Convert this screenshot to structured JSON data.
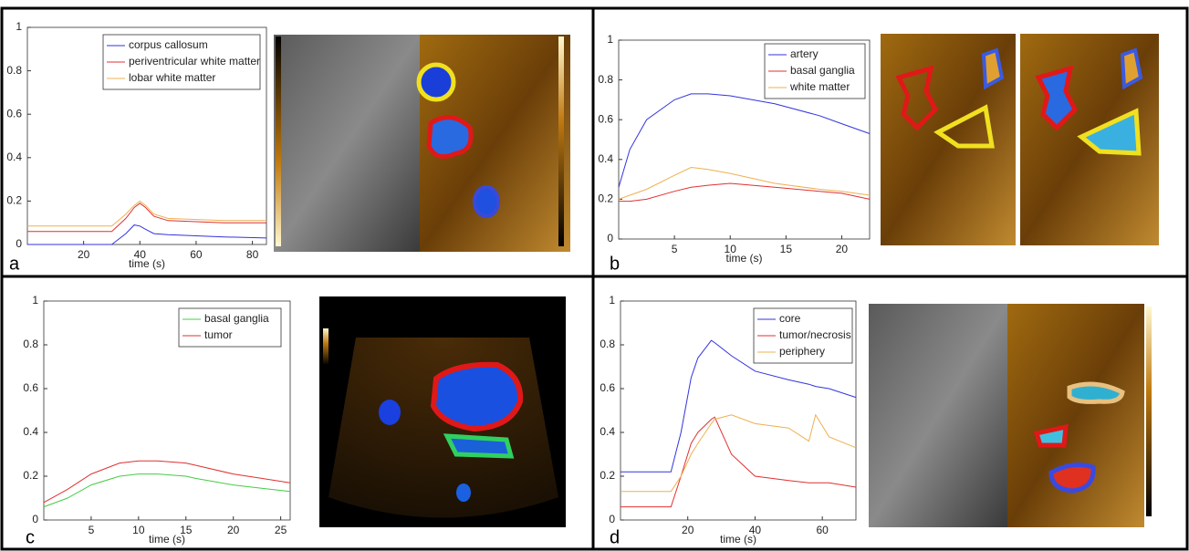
{
  "chart_data": [
    {
      "type": "line",
      "panel_label": "a",
      "xlabel": "time (s)",
      "xlim": [
        0,
        85
      ],
      "xticks": [
        20,
        40,
        60,
        80
      ],
      "ylim": [
        0,
        1
      ],
      "yticks": [
        0,
        0.2,
        0.4,
        0.6,
        0.8,
        1
      ],
      "x": [
        0,
        10,
        20,
        30,
        35,
        38,
        40,
        42,
        45,
        50,
        60,
        70,
        85
      ],
      "series": [
        {
          "name": "corpus callosum",
          "color": "#3333dd",
          "values": [
            0,
            0,
            0,
            0,
            0.05,
            0.09,
            0.085,
            0.07,
            0.05,
            0.045,
            0.04,
            0.035,
            0.03
          ]
        },
        {
          "name": "periventricular white matter",
          "color": "#e03030",
          "values": [
            0.06,
            0.06,
            0.06,
            0.06,
            0.12,
            0.17,
            0.19,
            0.17,
            0.13,
            0.11,
            0.105,
            0.1,
            0.1
          ]
        },
        {
          "name": "lobar white matter",
          "color": "#eeb050",
          "values": [
            0.085,
            0.085,
            0.085,
            0.085,
            0.14,
            0.18,
            0.2,
            0.18,
            0.14,
            0.12,
            0.115,
            0.11,
            0.11
          ]
        }
      ]
    },
    {
      "type": "line",
      "panel_label": "b",
      "xlabel": "time (s)",
      "xlim": [
        0,
        22.5
      ],
      "xticks": [
        5,
        10,
        15,
        20
      ],
      "ylim": [
        0,
        1
      ],
      "yticks": [
        0,
        0.2,
        0.4,
        0.6,
        0.8,
        1
      ],
      "x": [
        0,
        1,
        2.5,
        5,
        6.5,
        8,
        10,
        14,
        18,
        20,
        22.5
      ],
      "series": [
        {
          "name": "artery",
          "color": "#3333dd",
          "values": [
            0.26,
            0.45,
            0.6,
            0.7,
            0.73,
            0.73,
            0.72,
            0.68,
            0.62,
            0.58,
            0.53
          ]
        },
        {
          "name": "basal ganglia",
          "color": "#e03030",
          "values": [
            0.19,
            0.19,
            0.2,
            0.24,
            0.26,
            0.27,
            0.28,
            0.26,
            0.24,
            0.23,
            0.2
          ]
        },
        {
          "name": "white matter",
          "color": "#eeb050",
          "values": [
            0.2,
            0.22,
            0.25,
            0.32,
            0.36,
            0.35,
            0.33,
            0.28,
            0.25,
            0.24,
            0.22
          ]
        }
      ]
    },
    {
      "type": "line",
      "panel_label": "c",
      "xlabel": "time (s)",
      "xlim": [
        0,
        26
      ],
      "xticks": [
        5,
        10,
        15,
        20,
        25
      ],
      "ylim": [
        0,
        1
      ],
      "yticks": [
        0,
        0.2,
        0.4,
        0.6,
        0.8,
        1
      ],
      "x": [
        0,
        2.5,
        5,
        8,
        10,
        12,
        15,
        16,
        20,
        23,
        26
      ],
      "series": [
        {
          "name": "basal ganglia",
          "color": "#44cc44",
          "values": [
            0.06,
            0.1,
            0.16,
            0.2,
            0.21,
            0.21,
            0.2,
            0.19,
            0.16,
            0.145,
            0.13
          ]
        },
        {
          "name": "tumor",
          "color": "#e03030",
          "values": [
            0.08,
            0.14,
            0.21,
            0.26,
            0.27,
            0.27,
            0.26,
            0.25,
            0.21,
            0.19,
            0.17
          ]
        }
      ]
    },
    {
      "type": "line",
      "panel_label": "d",
      "xlabel": "time (s)",
      "xlim": [
        0,
        70
      ],
      "xticks": [
        20,
        40,
        60
      ],
      "ylim": [
        0,
        1
      ],
      "yticks": [
        0,
        0.2,
        0.4,
        0.6,
        0.8,
        1
      ],
      "x": [
        0,
        15,
        18,
        21,
        23,
        27,
        28,
        33,
        40,
        50,
        56,
        58,
        62,
        70
      ],
      "series": [
        {
          "name": "core",
          "color": "#3333dd",
          "values": [
            0.22,
            0.22,
            0.4,
            0.65,
            0.74,
            0.82,
            0.81,
            0.75,
            0.68,
            0.64,
            0.62,
            0.61,
            0.6,
            0.56
          ]
        },
        {
          "name": "tumor/necrosis",
          "color": "#e03030",
          "values": [
            0.06,
            0.06,
            0.2,
            0.35,
            0.4,
            0.46,
            0.47,
            0.3,
            0.2,
            0.18,
            0.17,
            0.17,
            0.17,
            0.15
          ]
        },
        {
          "name": "periphery",
          "color": "#eeb050",
          "values": [
            0.13,
            0.13,
            0.2,
            0.3,
            0.35,
            0.44,
            0.46,
            0.48,
            0.44,
            0.42,
            0.36,
            0.48,
            0.38,
            0.33
          ]
        }
      ]
    }
  ]
}
